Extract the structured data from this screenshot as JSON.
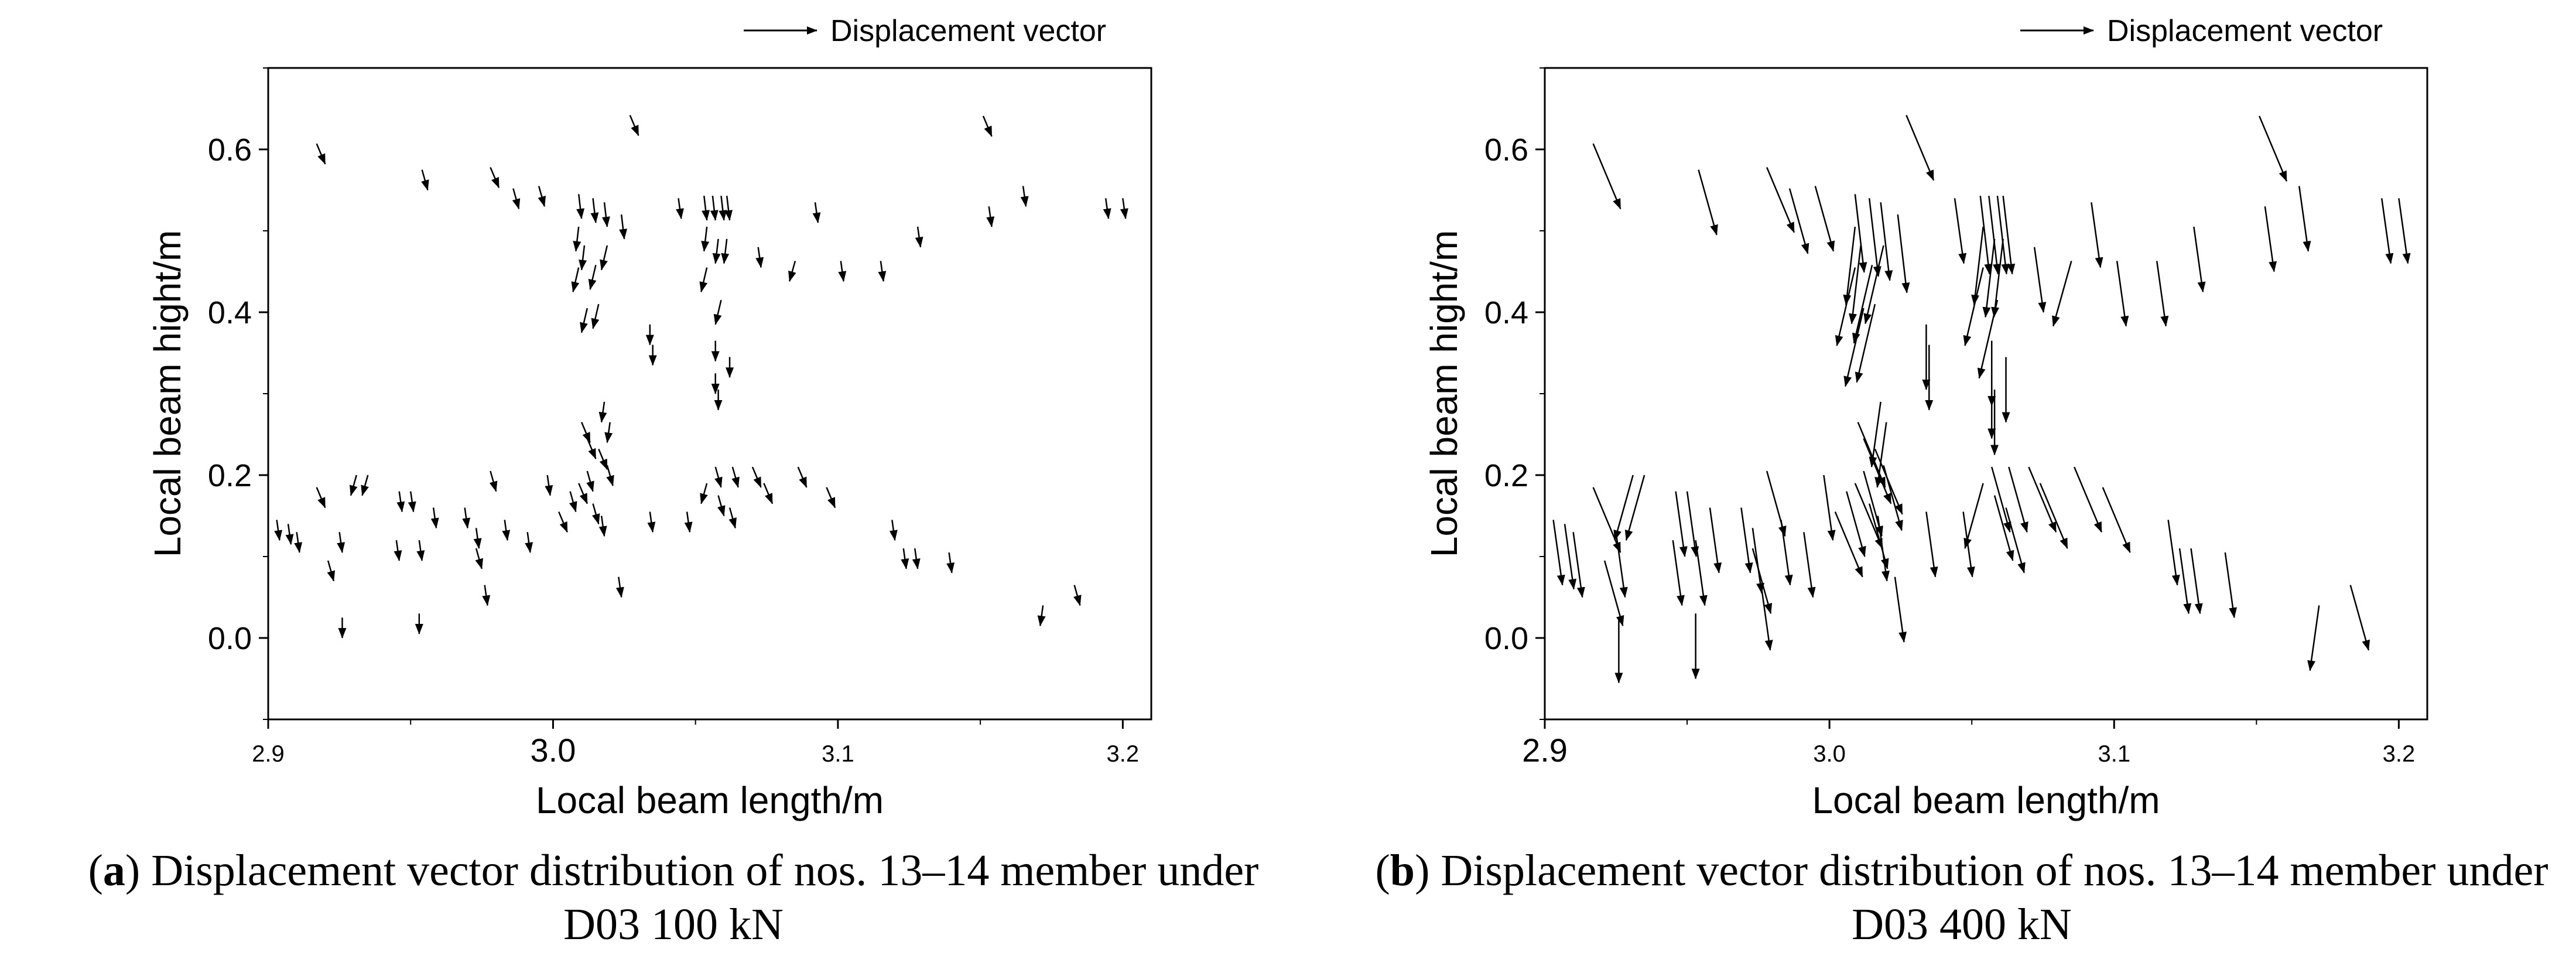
{
  "figure": {
    "captions": [
      {
        "label": "a",
        "text": "Displacement vector distribution of nos. 13–14 member under",
        "load": "D03 100 kN"
      },
      {
        "label": "b",
        "text": "Displacement vector distribution of nos. 13–14 member under",
        "load": "D03 400 kN"
      }
    ]
  },
  "chart_data": [
    {
      "type": "quiver",
      "title": "",
      "xlabel": "Local beam length/m",
      "ylabel": "Local beam hight/m",
      "xlim": [
        2.9,
        3.21
      ],
      "ylim": [
        -0.1,
        0.7
      ],
      "xticks": [
        "2.9",
        "3.0",
        "3.1",
        "3.2"
      ],
      "xtick_values": [
        2.9,
        3.0,
        3.1,
        3.2
      ],
      "yticks": [
        "0.0",
        "0.2",
        "0.4",
        "0.6"
      ],
      "ytick_values": [
        0.0,
        0.2,
        0.4,
        0.6
      ],
      "legend": {
        "label": "Displacement vector",
        "position": "top-right"
      },
      "vector_scale": 1,
      "vectors": [
        [
          2.917,
          0.607,
          0.003,
          -0.025
        ],
        [
          2.954,
          0.575,
          0.002,
          -0.025
        ],
        [
          2.978,
          0.578,
          0.003,
          -0.025
        ],
        [
          2.986,
          0.552,
          0.002,
          -0.025
        ],
        [
          2.995,
          0.555,
          0.002,
          -0.025
        ],
        [
          3.027,
          0.642,
          0.003,
          -0.025
        ],
        [
          3.009,
          0.545,
          0.001,
          -0.03
        ],
        [
          3.014,
          0.54,
          0.001,
          -0.03
        ],
        [
          3.018,
          0.535,
          0.001,
          -0.03
        ],
        [
          3.024,
          0.52,
          0.001,
          -0.03
        ],
        [
          3.044,
          0.54,
          0.001,
          -0.025
        ],
        [
          3.053,
          0.543,
          0.001,
          -0.03
        ],
        [
          3.056,
          0.543,
          0.001,
          -0.03
        ],
        [
          3.059,
          0.543,
          0.001,
          -0.03
        ],
        [
          3.061,
          0.543,
          0.001,
          -0.03
        ],
        [
          3.092,
          0.535,
          0.001,
          -0.025
        ],
        [
          3.151,
          0.641,
          0.003,
          -0.025
        ],
        [
          3.153,
          0.53,
          0.001,
          -0.025
        ],
        [
          3.165,
          0.555,
          0.001,
          -0.025
        ],
        [
          3.194,
          0.54,
          0.001,
          -0.025
        ],
        [
          3.2,
          0.54,
          0.001,
          -0.025
        ],
        [
          3.128,
          0.505,
          0.001,
          -0.025
        ],
        [
          3.101,
          0.463,
          0.001,
          -0.025
        ],
        [
          3.115,
          0.463,
          0.001,
          -0.025
        ],
        [
          3.072,
          0.48,
          0.001,
          -0.025
        ],
        [
          3.085,
          0.463,
          -0.002,
          -0.025
        ],
        [
          3.009,
          0.505,
          -0.001,
          -0.03
        ],
        [
          3.011,
          0.482,
          -0.001,
          -0.03
        ],
        [
          3.009,
          0.455,
          -0.002,
          -0.03
        ],
        [
          3.015,
          0.458,
          -0.002,
          -0.03
        ],
        [
          3.019,
          0.482,
          -0.002,
          -0.03
        ],
        [
          3.012,
          0.405,
          -0.002,
          -0.03
        ],
        [
          3.016,
          0.41,
          -0.002,
          -0.03
        ],
        [
          3.054,
          0.505,
          -0.001,
          -0.03
        ],
        [
          3.058,
          0.49,
          -0.001,
          -0.03
        ],
        [
          3.061,
          0.49,
          -0.001,
          -0.03
        ],
        [
          3.054,
          0.455,
          -0.002,
          -0.03
        ],
        [
          3.059,
          0.415,
          -0.002,
          -0.03
        ],
        [
          3.034,
          0.385,
          0.0,
          -0.025
        ],
        [
          3.035,
          0.36,
          0.0,
          -0.025
        ],
        [
          3.057,
          0.365,
          0.0,
          -0.025
        ],
        [
          3.062,
          0.345,
          0.0,
          -0.025
        ],
        [
          3.057,
          0.325,
          0.0,
          -0.025
        ],
        [
          3.058,
          0.305,
          0.0,
          -0.025
        ],
        [
          3.018,
          0.29,
          -0.001,
          -0.025
        ],
        [
          3.02,
          0.265,
          -0.001,
          -0.025
        ],
        [
          3.01,
          0.265,
          0.003,
          -0.025
        ],
        [
          3.012,
          0.245,
          0.003,
          -0.025
        ],
        [
          3.016,
          0.232,
          0.003,
          -0.025
        ],
        [
          3.019,
          0.212,
          0.002,
          -0.025
        ],
        [
          3.012,
          0.205,
          0.002,
          -0.025
        ],
        [
          3.009,
          0.19,
          0.003,
          -0.025
        ],
        [
          3.014,
          0.165,
          0.002,
          -0.025
        ],
        [
          2.917,
          0.185,
          0.003,
          -0.025
        ],
        [
          2.931,
          0.2,
          -0.002,
          -0.025
        ],
        [
          2.935,
          0.2,
          -0.002,
          -0.025
        ],
        [
          2.946,
          0.18,
          0.001,
          -0.025
        ],
        [
          2.95,
          0.18,
          0.001,
          -0.025
        ],
        [
          2.969,
          0.16,
          0.001,
          -0.025
        ],
        [
          2.978,
          0.205,
          0.002,
          -0.025
        ],
        [
          2.998,
          0.2,
          0.001,
          -0.025
        ],
        [
          3.006,
          0.18,
          0.002,
          -0.025
        ],
        [
          3.002,
          0.155,
          0.003,
          -0.025
        ],
        [
          3.054,
          0.19,
          -0.002,
          -0.025
        ],
        [
          3.057,
          0.21,
          0.002,
          -0.025
        ],
        [
          3.063,
          0.21,
          0.002,
          -0.025
        ],
        [
          3.07,
          0.21,
          0.003,
          -0.025
        ],
        [
          3.086,
          0.21,
          0.003,
          -0.025
        ],
        [
          3.096,
          0.185,
          0.003,
          -0.025
        ],
        [
          3.074,
          0.19,
          0.003,
          -0.025
        ],
        [
          3.058,
          0.175,
          0.002,
          -0.025
        ],
        [
          3.062,
          0.16,
          0.002,
          -0.025
        ],
        [
          2.903,
          0.145,
          0.001,
          -0.025
        ],
        [
          2.907,
          0.14,
          0.001,
          -0.025
        ],
        [
          2.91,
          0.13,
          0.001,
          -0.025
        ],
        [
          2.925,
          0.13,
          0.001,
          -0.025
        ],
        [
          2.921,
          0.095,
          0.002,
          -0.025
        ],
        [
          2.926,
          0.025,
          0.0,
          -0.025
        ],
        [
          2.945,
          0.12,
          0.001,
          -0.025
        ],
        [
          2.953,
          0.12,
          0.001,
          -0.025
        ],
        [
          2.958,
          0.16,
          0.001,
          -0.025
        ],
        [
          2.983,
          0.145,
          0.001,
          -0.025
        ],
        [
          2.991,
          0.13,
          0.001,
          -0.025
        ],
        [
          2.973,
          0.135,
          0.001,
          -0.025
        ],
        [
          2.973,
          0.11,
          0.002,
          -0.025
        ],
        [
          2.976,
          0.065,
          0.001,
          -0.025
        ],
        [
          2.953,
          0.03,
          0.0,
          -0.025
        ],
        [
          3.023,
          0.075,
          0.001,
          -0.025
        ],
        [
          3.034,
          0.155,
          0.001,
          -0.025
        ],
        [
          3.047,
          0.155,
          0.001,
          -0.025
        ],
        [
          3.017,
          0.15,
          0.001,
          -0.025
        ],
        [
          3.119,
          0.145,
          0.001,
          -0.025
        ],
        [
          3.123,
          0.11,
          0.001,
          -0.025
        ],
        [
          3.127,
          0.11,
          0.001,
          -0.025
        ],
        [
          3.139,
          0.105,
          0.001,
          -0.025
        ],
        [
          3.172,
          0.04,
          -0.001,
          -0.025
        ],
        [
          3.183,
          0.065,
          0.002,
          -0.025
        ]
      ]
    },
    {
      "type": "quiver",
      "title": "",
      "xlabel": "Local beam length/m",
      "ylabel": "Local beam hight/m",
      "xlim": [
        2.9,
        3.21
      ],
      "ylim": [
        -0.1,
        0.7
      ],
      "xticks": [
        "2.9",
        "3.0",
        "3.1",
        "3.2"
      ],
      "xtick_values": [
        2.9,
        3.0,
        3.1,
        3.2
      ],
      "yticks": [
        "0.0",
        "0.2",
        "0.4",
        "0.6"
      ],
      "ytick_values": [
        0.0,
        0.2,
        0.4,
        0.6
      ],
      "legend": {
        "label": "Displacement vector",
        "position": "top-right"
      },
      "vector_scale": 3.2,
      "vectors": [
        [
          2.917,
          0.607,
          0.003,
          -0.025
        ],
        [
          2.954,
          0.575,
          0.002,
          -0.025
        ],
        [
          2.978,
          0.578,
          0.003,
          -0.025
        ],
        [
          2.986,
          0.552,
          0.002,
          -0.025
        ],
        [
          2.995,
          0.555,
          0.002,
          -0.025
        ],
        [
          3.027,
          0.642,
          0.003,
          -0.025
        ],
        [
          3.009,
          0.545,
          0.001,
          -0.03
        ],
        [
          3.014,
          0.54,
          0.001,
          -0.03
        ],
        [
          3.018,
          0.535,
          0.001,
          -0.03
        ],
        [
          3.024,
          0.52,
          0.001,
          -0.03
        ],
        [
          3.044,
          0.54,
          0.001,
          -0.025
        ],
        [
          3.053,
          0.543,
          0.001,
          -0.03
        ],
        [
          3.056,
          0.543,
          0.001,
          -0.03
        ],
        [
          3.059,
          0.543,
          0.001,
          -0.03
        ],
        [
          3.061,
          0.543,
          0.001,
          -0.03
        ],
        [
          3.092,
          0.535,
          0.001,
          -0.025
        ],
        [
          3.151,
          0.641,
          0.003,
          -0.025
        ],
        [
          3.153,
          0.53,
          0.001,
          -0.025
        ],
        [
          3.165,
          0.555,
          0.001,
          -0.025
        ],
        [
          3.194,
          0.54,
          0.001,
          -0.025
        ],
        [
          3.2,
          0.54,
          0.001,
          -0.025
        ],
        [
          3.128,
          0.505,
          0.001,
          -0.025
        ],
        [
          3.101,
          0.463,
          0.001,
          -0.025
        ],
        [
          3.115,
          0.463,
          0.001,
          -0.025
        ],
        [
          3.072,
          0.48,
          0.001,
          -0.025
        ],
        [
          3.085,
          0.463,
          -0.002,
          -0.025
        ],
        [
          3.009,
          0.505,
          -0.001,
          -0.03
        ],
        [
          3.011,
          0.482,
          -0.001,
          -0.03
        ],
        [
          3.009,
          0.455,
          -0.002,
          -0.03
        ],
        [
          3.015,
          0.458,
          -0.002,
          -0.03
        ],
        [
          3.019,
          0.482,
          -0.002,
          -0.03
        ],
        [
          3.012,
          0.405,
          -0.002,
          -0.03
        ],
        [
          3.016,
          0.41,
          -0.002,
          -0.03
        ],
        [
          3.054,
          0.505,
          -0.001,
          -0.03
        ],
        [
          3.058,
          0.49,
          -0.001,
          -0.03
        ],
        [
          3.061,
          0.49,
          -0.001,
          -0.03
        ],
        [
          3.054,
          0.455,
          -0.002,
          -0.03
        ],
        [
          3.059,
          0.415,
          -0.002,
          -0.03
        ],
        [
          3.034,
          0.385,
          0.0,
          -0.025
        ],
        [
          3.035,
          0.36,
          0.0,
          -0.025
        ],
        [
          3.057,
          0.365,
          0.0,
          -0.025
        ],
        [
          3.062,
          0.345,
          0.0,
          -0.025
        ],
        [
          3.057,
          0.325,
          0.0,
          -0.025
        ],
        [
          3.058,
          0.305,
          0.0,
          -0.025
        ],
        [
          3.018,
          0.29,
          -0.001,
          -0.025
        ],
        [
          3.02,
          0.265,
          -0.001,
          -0.025
        ],
        [
          3.01,
          0.265,
          0.003,
          -0.025
        ],
        [
          3.012,
          0.245,
          0.003,
          -0.025
        ],
        [
          3.016,
          0.232,
          0.003,
          -0.025
        ],
        [
          3.019,
          0.212,
          0.002,
          -0.025
        ],
        [
          3.012,
          0.205,
          0.002,
          -0.025
        ],
        [
          3.009,
          0.19,
          0.003,
          -0.025
        ],
        [
          3.014,
          0.165,
          0.002,
          -0.025
        ],
        [
          2.917,
          0.185,
          0.003,
          -0.025
        ],
        [
          2.931,
          0.2,
          -0.002,
          -0.025
        ],
        [
          2.935,
          0.2,
          -0.002,
          -0.025
        ],
        [
          2.946,
          0.18,
          0.001,
          -0.025
        ],
        [
          2.95,
          0.18,
          0.001,
          -0.025
        ],
        [
          2.969,
          0.16,
          0.001,
          -0.025
        ],
        [
          2.978,
          0.205,
          0.002,
          -0.025
        ],
        [
          2.998,
          0.2,
          0.001,
          -0.025
        ],
        [
          3.006,
          0.18,
          0.002,
          -0.025
        ],
        [
          3.002,
          0.155,
          0.003,
          -0.025
        ],
        [
          3.054,
          0.19,
          -0.002,
          -0.025
        ],
        [
          3.057,
          0.21,
          0.002,
          -0.025
        ],
        [
          3.063,
          0.21,
          0.002,
          -0.025
        ],
        [
          3.07,
          0.21,
          0.003,
          -0.025
        ],
        [
          3.086,
          0.21,
          0.003,
          -0.025
        ],
        [
          3.096,
          0.185,
          0.003,
          -0.025
        ],
        [
          3.074,
          0.19,
          0.003,
          -0.025
        ],
        [
          3.058,
          0.175,
          0.002,
          -0.025
        ],
        [
          3.062,
          0.16,
          0.002,
          -0.025
        ],
        [
          2.903,
          0.145,
          0.001,
          -0.025
        ],
        [
          2.907,
          0.14,
          0.001,
          -0.025
        ],
        [
          2.91,
          0.13,
          0.001,
          -0.025
        ],
        [
          2.925,
          0.13,
          0.001,
          -0.025
        ],
        [
          2.921,
          0.095,
          0.002,
          -0.025
        ],
        [
          2.926,
          0.025,
          0.0,
          -0.025
        ],
        [
          2.945,
          0.12,
          0.001,
          -0.025
        ],
        [
          2.953,
          0.12,
          0.001,
          -0.025
        ],
        [
          2.958,
          0.16,
          0.001,
          -0.025
        ],
        [
          2.983,
          0.145,
          0.001,
          -0.025
        ],
        [
          2.991,
          0.13,
          0.001,
          -0.025
        ],
        [
          2.973,
          0.135,
          0.001,
          -0.025
        ],
        [
          2.973,
          0.11,
          0.002,
          -0.025
        ],
        [
          2.976,
          0.065,
          0.001,
          -0.025
        ],
        [
          2.953,
          0.03,
          0.0,
          -0.025
        ],
        [
          3.023,
          0.075,
          0.001,
          -0.025
        ],
        [
          3.034,
          0.155,
          0.001,
          -0.025
        ],
        [
          3.047,
          0.155,
          0.001,
          -0.025
        ],
        [
          3.017,
          0.15,
          0.001,
          -0.025
        ],
        [
          3.119,
          0.145,
          0.001,
          -0.025
        ],
        [
          3.123,
          0.11,
          0.001,
          -0.025
        ],
        [
          3.127,
          0.11,
          0.001,
          -0.025
        ],
        [
          3.139,
          0.105,
          0.001,
          -0.025
        ],
        [
          3.172,
          0.04,
          -0.001,
          -0.025
        ],
        [
          3.183,
          0.065,
          0.002,
          -0.025
        ]
      ]
    }
  ]
}
